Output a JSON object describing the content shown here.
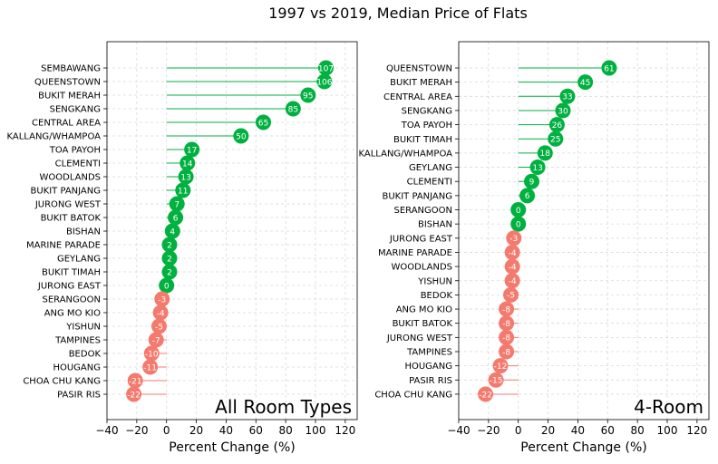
{
  "title": "1997 vs 2019, Median Price of Flats",
  "colors": {
    "positive": "#00b140",
    "negative": "#f57a6e",
    "grid": "#d9d9d9",
    "axis": "#000000"
  },
  "chart_data": [
    {
      "type": "lollipop",
      "panel_label": "All Room Types",
      "xlabel": "Percent Change (%)",
      "xlim": [
        -40,
        128
      ],
      "xticks": [
        -40,
        -20,
        0,
        20,
        40,
        60,
        80,
        100,
        120
      ],
      "grid": true,
      "categories": [
        "SEMBAWANG",
        "QUEENSTOWN",
        "BUKIT MERAH",
        "SENGKANG",
        "CENTRAL AREA",
        "KALLANG/WHAMPOA",
        "TOA PAYOH",
        "CLEMENTI",
        "WOODLANDS",
        "BUKIT PANJANG",
        "JURONG WEST",
        "BUKIT BATOK",
        "BISHAN",
        "MARINE PARADE",
        "GEYLANG",
        "BUKIT TIMAH",
        "JURONG EAST",
        "SERANGOON",
        "ANG MO KIO",
        "YISHUN",
        "TAMPINES",
        "BEDOK",
        "HOUGANG",
        "CHOA CHU KANG",
        "PASIR RIS"
      ],
      "values": [
        107,
        106,
        95,
        85,
        65,
        50,
        17,
        14,
        13,
        11,
        7,
        6,
        4,
        2,
        2,
        2,
        0,
        -3,
        -4,
        -5,
        -7,
        -10,
        -11,
        -21,
        -22
      ]
    },
    {
      "type": "lollipop",
      "panel_label": "4-Room",
      "xlabel": "Percent Change (%)",
      "xlim": [
        -40,
        128
      ],
      "xticks": [
        -40,
        -20,
        0,
        20,
        40,
        60,
        80,
        100,
        120
      ],
      "grid": true,
      "categories": [
        "QUEENSTOWN",
        "BUKIT MERAH",
        "CENTRAL AREA",
        "SENGKANG",
        "TOA PAYOH",
        "BUKIT TIMAH",
        "KALLANG/WHAMPOA",
        "GEYLANG",
        "CLEMENTI",
        "BUKIT PANJANG",
        "SERANGOON",
        "BISHAN",
        "JURONG EAST",
        "MARINE PARADE",
        "WOODLANDS",
        "YISHUN",
        "BEDOK",
        "ANG MO KIO",
        "BUKIT BATOK",
        "JURONG WEST",
        "TAMPINES",
        "HOUGANG",
        "PASIR RIS",
        "CHOA CHU KANG"
      ],
      "values": [
        61,
        45,
        33,
        30,
        26,
        25,
        18,
        13,
        9,
        6,
        0,
        0,
        -3,
        -4,
        -4,
        -4,
        -5,
        -8,
        -8,
        -8,
        -8,
        -12,
        -15,
        -22
      ]
    }
  ]
}
